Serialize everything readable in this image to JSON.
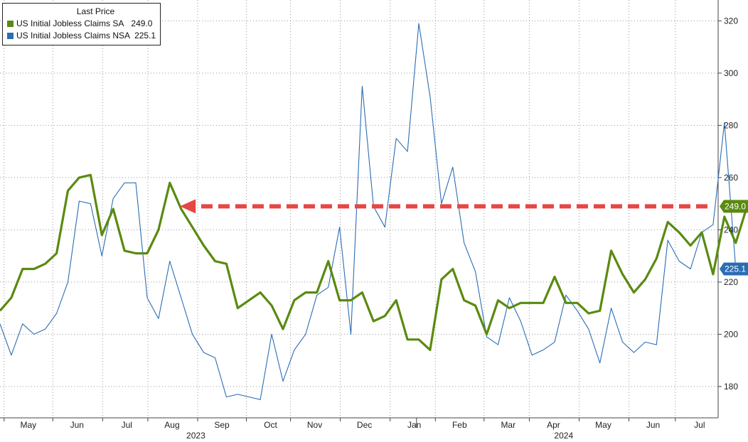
{
  "legend": {
    "title": "Last Price",
    "items": [
      {
        "label": "US Initial Jobless Claims SA",
        "value": "249.0",
        "color": "#5a8a10"
      },
      {
        "label": "US Initial Jobless Claims NSA",
        "value": "225.1",
        "color": "#2a6db5"
      }
    ]
  },
  "chart_data": {
    "type": "line",
    "y_axis_side": "right",
    "ylim": [
      168,
      328
    ],
    "yticks": [
      180,
      200,
      220,
      240,
      260,
      280,
      300,
      320
    ],
    "xlim": [
      0,
      62
    ],
    "x_month_ticks": [
      {
        "label": "May",
        "x": 2.5
      },
      {
        "label": "Jun",
        "x": 6.8
      },
      {
        "label": "Jul",
        "x": 11.2
      },
      {
        "label": "Aug",
        "x": 15.2
      },
      {
        "label": "Sep",
        "x": 19.6
      },
      {
        "label": "Oct",
        "x": 23.9
      },
      {
        "label": "Nov",
        "x": 27.8
      },
      {
        "label": "Dec",
        "x": 32.2
      },
      {
        "label": "Jan",
        "x": 36.6
      },
      {
        "label": "Feb",
        "x": 40.6
      },
      {
        "label": "Mar",
        "x": 44.9
      },
      {
        "label": "Apr",
        "x": 48.9
      },
      {
        "label": "May",
        "x": 53.3
      },
      {
        "label": "Jun",
        "x": 57.7
      },
      {
        "label": "Jul",
        "x": 61.8
      }
    ],
    "x_year_labels": [
      {
        "label": "2023",
        "x": 17.3
      },
      {
        "label": "2024",
        "x": 49.8
      }
    ],
    "gridlines": true,
    "series": [
      {
        "name": "US Initial Jobless Claims SA",
        "color": "#5a8a10",
        "last_label": "249.0",
        "values": [
          209,
          214,
          225,
          225,
          227,
          231,
          255,
          260,
          261,
          238,
          248,
          232,
          231,
          231,
          240,
          258,
          248,
          241,
          234,
          228,
          227,
          210,
          213,
          216,
          211,
          202,
          213,
          216,
          216,
          228,
          213,
          213,
          216,
          205,
          207,
          213,
          198,
          198,
          194,
          221,
          225,
          213,
          211,
          200,
          213,
          210,
          212,
          212,
          212,
          222,
          212,
          212,
          208,
          209,
          232,
          223,
          216,
          221,
          229,
          243,
          239,
          234,
          239,
          223,
          245,
          235,
          249
        ]
      },
      {
        "name": "US Initial Jobless Claims NSA",
        "color": "#2a6db5",
        "last_label": "225.1",
        "values": [
          204,
          192,
          204,
          200,
          202,
          208,
          220,
          251,
          250,
          230,
          252,
          258,
          258,
          214,
          206,
          228,
          214,
          200,
          193,
          191,
          176,
          177,
          176,
          175,
          200,
          182,
          194,
          200,
          215,
          218,
          241,
          200,
          295,
          249,
          241,
          275,
          270,
          319,
          291,
          250,
          264,
          235,
          224,
          199,
          196,
          214,
          205,
          192,
          194,
          197,
          215,
          209,
          202,
          189,
          210,
          197,
          193,
          197,
          196,
          236,
          228,
          225,
          239,
          242,
          281,
          225
        ]
      }
    ],
    "annotations": [
      {
        "type": "dashed-arrow",
        "y": 249,
        "x_from": 62.5,
        "x_to": 15.9,
        "color": "#e84545"
      }
    ]
  }
}
